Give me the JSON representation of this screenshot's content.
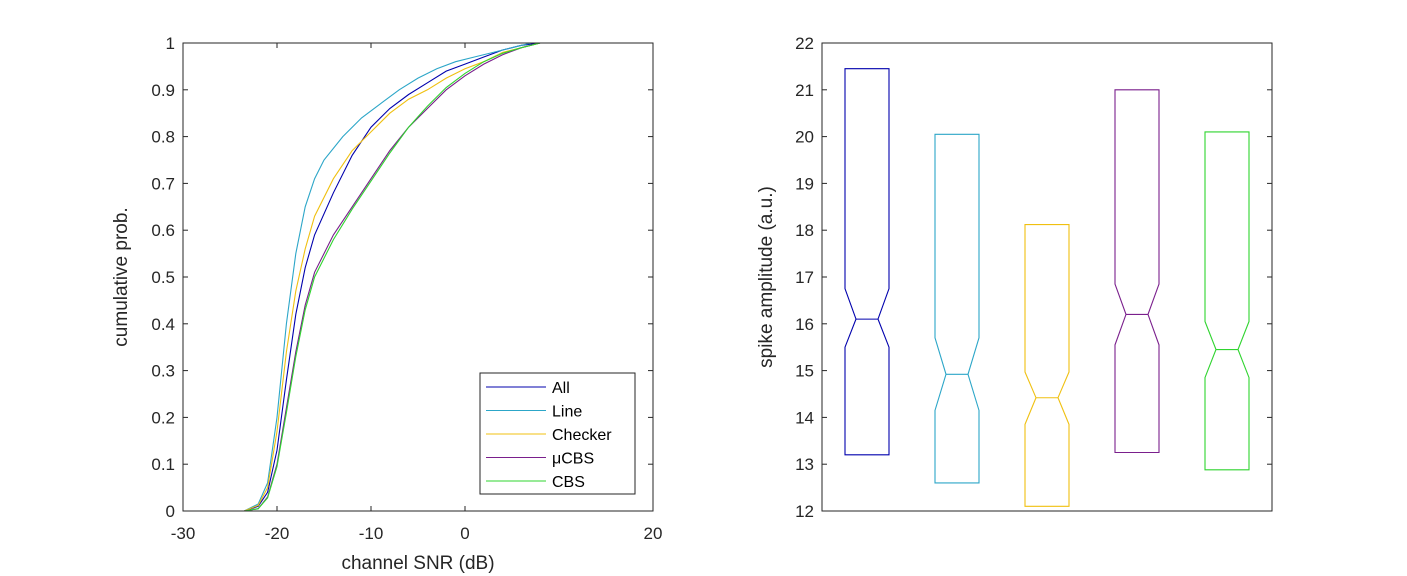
{
  "chart_data": [
    {
      "type": "line",
      "subtype": "cumulative distribution",
      "xlabel": "channel SNR (dB)",
      "ylabel": "cumulative prob.",
      "xlim": [
        -30,
        20
      ],
      "ylim": [
        0,
        1
      ],
      "xticks": [
        -30,
        -20,
        -10,
        0,
        20
      ],
      "yticks": [
        0,
        0.1,
        0.2,
        0.3,
        0.4,
        0.5,
        0.6,
        0.7,
        0.8,
        0.9,
        1
      ],
      "x_tick_labels": [
        "-30",
        "-20",
        "-10",
        "0",
        "20"
      ],
      "y_tick_labels": [
        "0",
        "0.1",
        "0.2",
        "0.3",
        "0.4",
        "0.5",
        "0.6",
        "0.7",
        "0.8",
        "0.9",
        "1"
      ],
      "grid": false,
      "legend_position": "bottom-right",
      "series": [
        {
          "name": "All",
          "color": "#0000ad",
          "points": [
            [
              -23.5,
              0
            ],
            [
              -22,
              0.01
            ],
            [
              -21,
              0.04
            ],
            [
              -20,
              0.13
            ],
            [
              -19,
              0.28
            ],
            [
              -18,
              0.42
            ],
            [
              -17,
              0.52
            ],
            [
              -16,
              0.59
            ],
            [
              -14,
              0.68
            ],
            [
              -12,
              0.76
            ],
            [
              -10,
              0.82
            ],
            [
              -8,
              0.86
            ],
            [
              -6,
              0.89
            ],
            [
              -4,
              0.915
            ],
            [
              -2,
              0.94
            ],
            [
              0,
              0.955
            ],
            [
              2,
              0.97
            ],
            [
              4,
              0.985
            ],
            [
              6,
              0.995
            ],
            [
              8,
              1
            ],
            [
              11.5,
              1
            ]
          ]
        },
        {
          "name": "Line",
          "color": "#2ca6c8",
          "points": [
            [
              -23.5,
              0
            ],
            [
              -22,
              0.015
            ],
            [
              -21,
              0.06
            ],
            [
              -20,
              0.2
            ],
            [
              -19,
              0.4
            ],
            [
              -18,
              0.55
            ],
            [
              -17,
              0.65
            ],
            [
              -16,
              0.71
            ],
            [
              -15,
              0.75
            ],
            [
              -13,
              0.8
            ],
            [
              -11,
              0.84
            ],
            [
              -9,
              0.87
            ],
            [
              -7,
              0.9
            ],
            [
              -5,
              0.925
            ],
            [
              -3,
              0.945
            ],
            [
              -1,
              0.96
            ],
            [
              1,
              0.97
            ],
            [
              3,
              0.98
            ],
            [
              5,
              0.99
            ],
            [
              7,
              1
            ],
            [
              11,
              1
            ]
          ]
        },
        {
          "name": "Checker",
          "color": "#f0c010",
          "points": [
            [
              -23.5,
              0
            ],
            [
              -22,
              0.012
            ],
            [
              -21,
              0.05
            ],
            [
              -20,
              0.17
            ],
            [
              -19,
              0.34
            ],
            [
              -18,
              0.47
            ],
            [
              -17,
              0.56
            ],
            [
              -16,
              0.63
            ],
            [
              -14,
              0.71
            ],
            [
              -12,
              0.77
            ],
            [
              -10,
              0.81
            ],
            [
              -8,
              0.85
            ],
            [
              -6,
              0.88
            ],
            [
              -4,
              0.9
            ],
            [
              -2,
              0.925
            ],
            [
              0,
              0.945
            ],
            [
              2,
              0.96
            ],
            [
              4,
              0.98
            ],
            [
              6,
              0.99
            ],
            [
              8,
              1
            ],
            [
              11.5,
              1
            ]
          ]
        },
        {
          "name": "μCBS",
          "color": "#7a1f8c",
          "points": [
            [
              -23.5,
              0
            ],
            [
              -22,
              0.005
            ],
            [
              -21,
              0.03
            ],
            [
              -20,
              0.1
            ],
            [
              -19,
              0.22
            ],
            [
              -18,
              0.34
            ],
            [
              -17,
              0.44
            ],
            [
              -16,
              0.51
            ],
            [
              -14,
              0.59
            ],
            [
              -12,
              0.65
            ],
            [
              -10,
              0.71
            ],
            [
              -8,
              0.77
            ],
            [
              -6,
              0.82
            ],
            [
              -4,
              0.86
            ],
            [
              -2,
              0.9
            ],
            [
              0,
              0.93
            ],
            [
              2,
              0.955
            ],
            [
              4,
              0.975
            ],
            [
              6,
              0.99
            ],
            [
              8,
              1
            ],
            [
              11.5,
              1
            ]
          ]
        },
        {
          "name": "CBS",
          "color": "#2fd42f",
          "points": [
            [
              -23.5,
              0
            ],
            [
              -22,
              0.005
            ],
            [
              -21,
              0.028
            ],
            [
              -20,
              0.095
            ],
            [
              -19,
              0.21
            ],
            [
              -18,
              0.33
            ],
            [
              -17,
              0.43
            ],
            [
              -16,
              0.5
            ],
            [
              -14,
              0.58
            ],
            [
              -12,
              0.645
            ],
            [
              -10,
              0.705
            ],
            [
              -8,
              0.765
            ],
            [
              -6,
              0.82
            ],
            [
              -4,
              0.865
            ],
            [
              -2,
              0.905
            ],
            [
              0,
              0.935
            ],
            [
              2,
              0.96
            ],
            [
              4,
              0.978
            ],
            [
              6,
              0.99
            ],
            [
              8,
              1
            ],
            [
              11.5,
              1
            ]
          ]
        }
      ]
    },
    {
      "type": "box",
      "subtype": "notched boxplot",
      "xlabel": "",
      "ylabel": "spike amplitude (a.u.)",
      "ylim": [
        12,
        22
      ],
      "yticks": [
        12,
        13,
        14,
        15,
        16,
        17,
        18,
        19,
        20,
        21,
        22
      ],
      "y_tick_labels": [
        "12",
        "13",
        "14",
        "15",
        "16",
        "17",
        "18",
        "19",
        "20",
        "21",
        "22"
      ],
      "grid": false,
      "boxes": [
        {
          "color": "#0000ad",
          "q1": 13.2,
          "median": 16.1,
          "q3": 21.45,
          "notch_low": 15.5,
          "notch_high": 16.75
        },
        {
          "color": "#2ca6c8",
          "q1": 12.6,
          "median": 14.92,
          "q3": 20.05,
          "notch_low": 14.15,
          "notch_high": 15.7
        },
        {
          "color": "#f0c010",
          "q1": 12.1,
          "median": 14.42,
          "q3": 18.12,
          "notch_low": 13.85,
          "notch_high": 14.97
        },
        {
          "color": "#7a1f8c",
          "q1": 13.25,
          "median": 16.2,
          "q3": 21.0,
          "notch_low": 15.55,
          "notch_high": 16.85
        },
        {
          "color": "#2fd42f",
          "q1": 12.88,
          "median": 15.45,
          "q3": 20.1,
          "notch_low": 14.85,
          "notch_high": 16.05
        }
      ]
    }
  ]
}
